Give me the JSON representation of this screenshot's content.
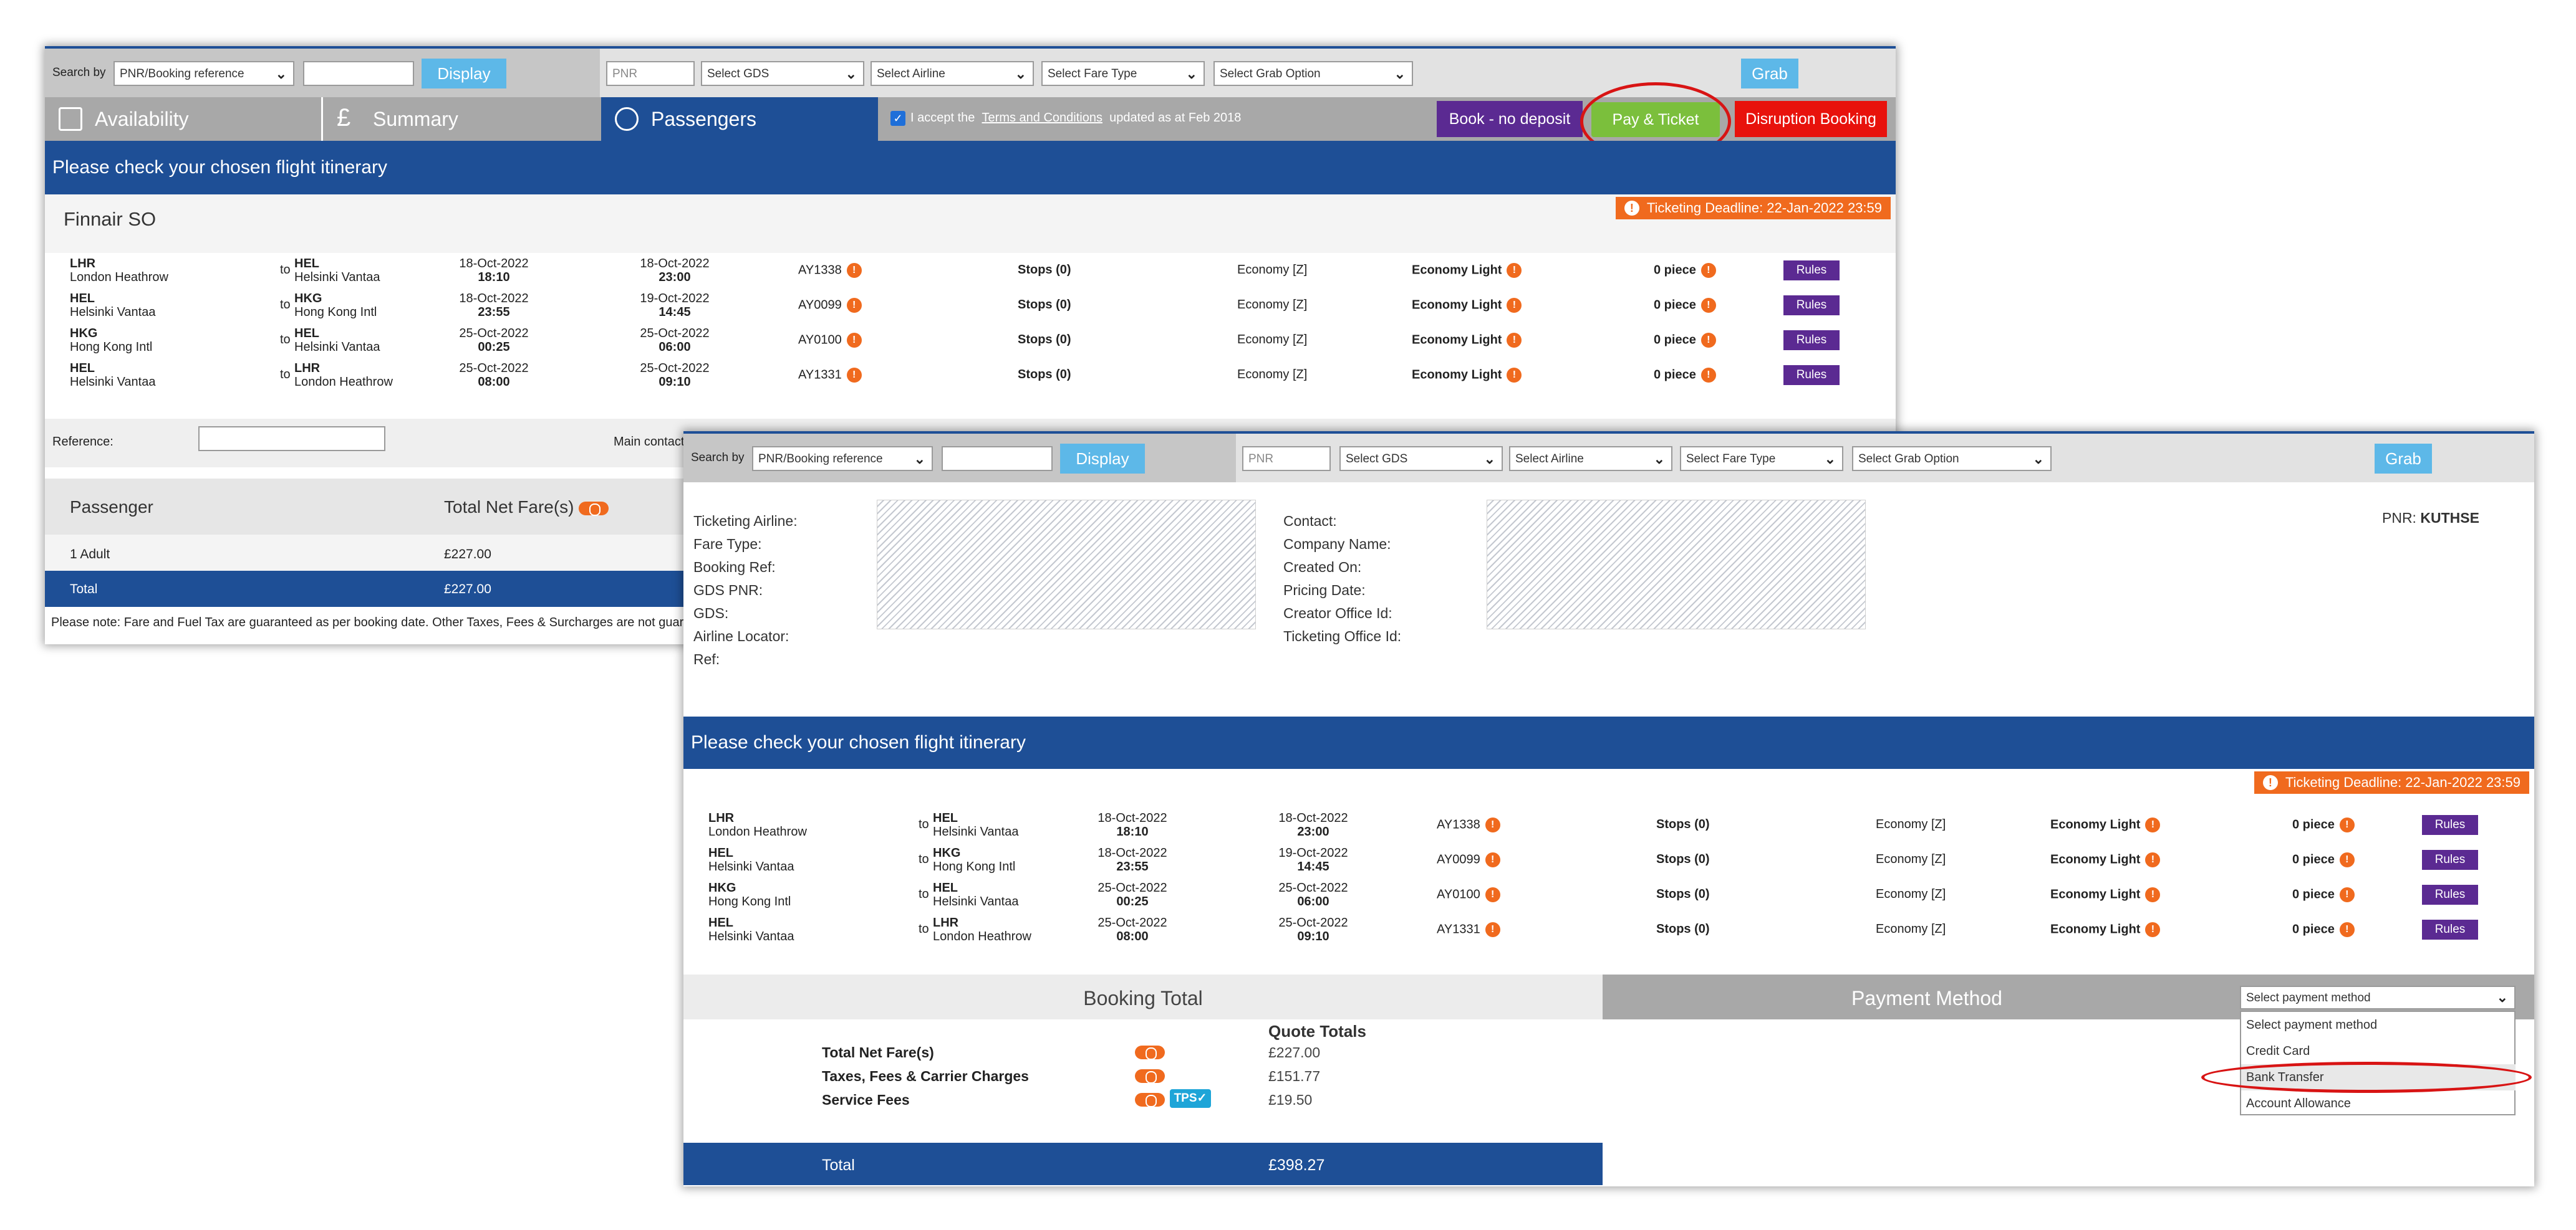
{
  "search": {
    "label": "Search by",
    "type_value": "PNR/Booking reference",
    "input_value": "",
    "display_label": "Display",
    "pnr_placeholder": "PNR",
    "gds": "Select GDS",
    "airline": "Select Airline",
    "fare_type": "Select Fare Type",
    "grab_option": "Select Grab Option",
    "grab_label": "Grab"
  },
  "tabs": {
    "availability": "Availability",
    "summary": "Summary",
    "passengers": "Passengers"
  },
  "terms": {
    "prefix": "I accept the",
    "link": "Terms and Conditions",
    "suffix": "updated as at Feb 2018"
  },
  "actions": {
    "book_no_deposit": "Book - no deposit",
    "pay_ticket": "Pay & Ticket",
    "disruption": "Disruption Booking"
  },
  "itinerary": {
    "header": "Please check your chosen flight itinerary",
    "airline_title": "Finnair SO",
    "deadline": "Ticketing Deadline: 22-Jan-2022 23:59",
    "to_label": "to",
    "flights": [
      {
        "from_code": "LHR",
        "from_name": "London Heathrow",
        "to_code": "HEL",
        "to_name": "Helsinki Vantaa",
        "dep_date": "18-Oct-2022",
        "dep_time": "18:10",
        "arr_date": "18-Oct-2022",
        "arr_time": "23:00",
        "flight": "AY1338",
        "stops": "Stops (0)",
        "cabin": "Economy",
        "class": "[Z]",
        "fare": "Economy Light",
        "bag": "0 piece",
        "rules": "Rules"
      },
      {
        "from_code": "HEL",
        "from_name": "Helsinki Vantaa",
        "to_code": "HKG",
        "to_name": "Hong Kong Intl",
        "dep_date": "18-Oct-2022",
        "dep_time": "23:55",
        "arr_date": "19-Oct-2022",
        "arr_time": "14:45",
        "flight": "AY0099",
        "stops": "Stops (0)",
        "cabin": "Economy",
        "class": "[Z]",
        "fare": "Economy Light",
        "bag": "0 piece",
        "rules": "Rules"
      },
      {
        "from_code": "HKG",
        "from_name": "Hong Kong Intl",
        "to_code": "HEL",
        "to_name": "Helsinki Vantaa",
        "dep_date": "25-Oct-2022",
        "dep_time": "00:25",
        "arr_date": "25-Oct-2022",
        "arr_time": "06:00",
        "flight": "AY0100",
        "stops": "Stops (0)",
        "cabin": "Economy",
        "class": "[Z]",
        "fare": "Economy Light",
        "bag": "0 piece",
        "rules": "Rules"
      },
      {
        "from_code": "HEL",
        "from_name": "Helsinki Vantaa",
        "to_code": "LHR",
        "to_name": "London Heathrow",
        "dep_date": "25-Oct-2022",
        "dep_time": "08:00",
        "arr_date": "25-Oct-2022",
        "arr_time": "09:10",
        "flight": "AY1331",
        "stops": "Stops (0)",
        "cabin": "Economy",
        "class": "[Z]",
        "fare": "Economy Light",
        "bag": "0 piece",
        "rules": "Rules"
      }
    ]
  },
  "reference": {
    "label": "Reference:",
    "value": "",
    "main_contact": "Main contact"
  },
  "passengers": {
    "col_passenger": "Passenger",
    "col_net": "Total Net Fare(s)",
    "row_label": "1 Adult",
    "row_value": "£227.00",
    "total_label": "Total",
    "total_value": "£227.00",
    "note": "Please note: Fare and Fuel Tax are guaranteed as per booking date. Other Taxes, Fees & Surcharges are not guarantee"
  },
  "details": {
    "left_labels": [
      "Ticketing Airline:",
      "Fare Type:",
      "Booking Ref:",
      "GDS PNR:",
      "GDS:",
      "Airline Locator:",
      "Ref:"
    ],
    "right_labels": [
      "Contact:",
      "Company Name:",
      "Created On:",
      "Pricing Date:",
      "Creator Office Id:",
      "Ticketing Office Id:"
    ],
    "pnr_label": "PNR:",
    "pnr_value": "KUTHSE"
  },
  "booking_total": {
    "title": "Booking Total",
    "quote_header": "Quote Totals",
    "rows": [
      {
        "label": "Total Net Fare(s)",
        "value": "£227.00"
      },
      {
        "label": "Taxes, Fees & Carrier Charges",
        "value": "£151.77"
      },
      {
        "label": "Service Fees",
        "value": "£19.50"
      }
    ],
    "tps": "TPS",
    "total_label": "Total",
    "total_value": "£398.27"
  },
  "payment": {
    "title": "Payment Method",
    "selected": "Select payment method",
    "options": [
      "Select payment method",
      "Credit Card",
      "Bank Transfer",
      "Account Allowance"
    ]
  },
  "colors": {
    "blue": "#1e4f96",
    "orange": "#f06a1e",
    "purple": "#5b2a92",
    "green": "#7bbf3c",
    "red": "#e8120c",
    "light_blue": "#5db8e8"
  }
}
